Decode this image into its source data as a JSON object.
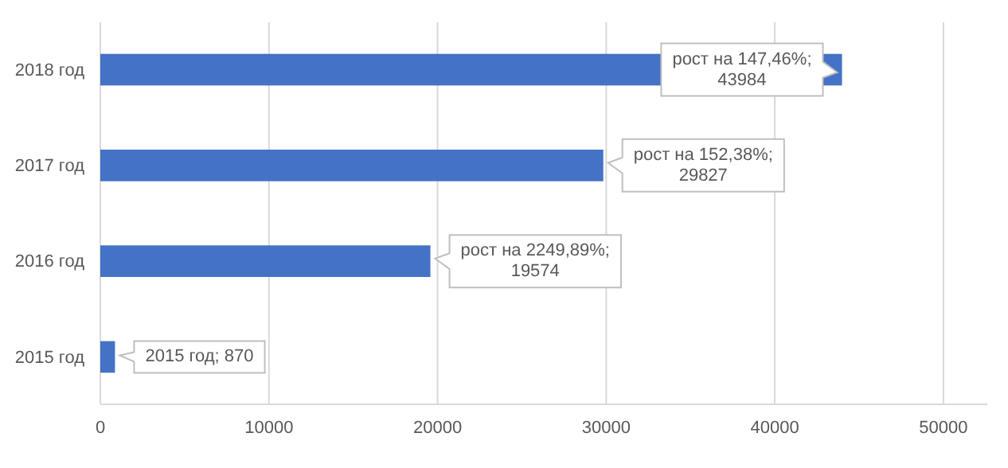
{
  "chart_data": {
    "type": "bar",
    "orientation": "horizontal",
    "categories": [
      "2018 год",
      "2017 год",
      "2016 год",
      "2015 год"
    ],
    "values": [
      43984,
      29827,
      19574,
      870
    ],
    "value_labels": [
      "рост на 147,46%; 43984",
      "рост на 152,38%; 29827",
      "рост на 2249,89%; 19574",
      "2015 год; 870"
    ],
    "color": "#4472c4",
    "xlim": [
      0,
      52600
    ],
    "xticks": [
      0,
      10000,
      20000,
      30000,
      40000,
      50000
    ],
    "grid": "x"
  }
}
